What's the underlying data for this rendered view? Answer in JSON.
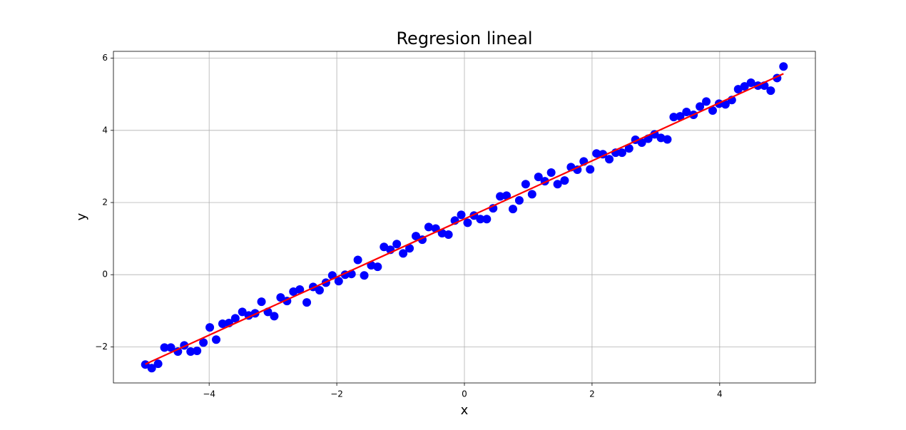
{
  "chart_data": {
    "type": "scatter",
    "title": "Regresion lineal",
    "x_label": "x",
    "y_label": "y",
    "xlim": [
      -5.5,
      5.5
    ],
    "ylim": [
      -3.0,
      6.19
    ],
    "xticks": [
      {
        "value": -4,
        "label": "−4"
      },
      {
        "value": -2,
        "label": "−2"
      },
      0,
      2,
      4
    ],
    "yticks": [
      {
        "value": -2,
        "label": "−2"
      },
      0,
      2,
      4,
      6
    ],
    "grid": true,
    "series": [
      {
        "type": "scatter",
        "color": "#0000ff",
        "x": [
          -5.0,
          -4.9,
          -4.8,
          -4.7,
          -4.6,
          -4.49,
          -4.39,
          -4.29,
          -4.19,
          -4.09,
          -3.99,
          -3.89,
          -3.79,
          -3.69,
          -3.59,
          -3.48,
          -3.38,
          -3.28,
          -3.18,
          -3.08,
          -2.98,
          -2.88,
          -2.78,
          -2.68,
          -2.58,
          -2.47,
          -2.37,
          -2.27,
          -2.17,
          -2.07,
          -1.97,
          -1.87,
          -1.77,
          -1.67,
          -1.57,
          -1.46,
          -1.36,
          -1.26,
          -1.16,
          -1.06,
          -0.96,
          -0.86,
          -0.76,
          -0.66,
          -0.56,
          -0.45,
          -0.35,
          -0.25,
          -0.15,
          -0.05,
          0.05,
          0.15,
          0.25,
          0.35,
          0.45,
          0.56,
          0.66,
          0.76,
          0.86,
          0.96,
          1.06,
          1.16,
          1.26,
          1.36,
          1.46,
          1.57,
          1.67,
          1.77,
          1.87,
          1.97,
          2.07,
          2.17,
          2.27,
          2.37,
          2.47,
          2.58,
          2.68,
          2.78,
          2.88,
          2.98,
          3.08,
          3.18,
          3.28,
          3.38,
          3.48,
          3.59,
          3.69,
          3.79,
          3.89,
          3.99,
          4.09,
          4.19,
          4.29,
          4.39,
          4.49,
          4.6,
          4.7,
          4.8,
          4.9,
          5.0
        ],
        "values": [
          -2.49,
          -2.59,
          -2.47,
          -2.02,
          -2.02,
          -2.13,
          -1.96,
          -2.13,
          -2.11,
          -1.88,
          -1.46,
          -1.8,
          -1.36,
          -1.34,
          -1.21,
          -1.03,
          -1.13,
          -1.07,
          -0.75,
          -1.03,
          -1.15,
          -0.63,
          -0.73,
          -0.47,
          -0.41,
          -0.77,
          -0.34,
          -0.43,
          -0.22,
          -0.02,
          -0.18,
          0.0,
          0.02,
          0.41,
          -0.02,
          0.26,
          0.22,
          0.77,
          0.69,
          0.85,
          0.59,
          0.73,
          1.07,
          0.97,
          1.32,
          1.28,
          1.15,
          1.11,
          1.5,
          1.66,
          1.44,
          1.64,
          1.54,
          1.54,
          1.84,
          2.17,
          2.19,
          1.82,
          2.06,
          2.51,
          2.23,
          2.71,
          2.59,
          2.83,
          2.51,
          2.61,
          2.98,
          2.91,
          3.14,
          2.92,
          3.36,
          3.34,
          3.2,
          3.38,
          3.38,
          3.5,
          3.74,
          3.66,
          3.77,
          3.89,
          3.79,
          3.75,
          4.37,
          4.39,
          4.51,
          4.43,
          4.66,
          4.8,
          4.55,
          4.74,
          4.72,
          4.84,
          5.14,
          5.22,
          5.32,
          5.24,
          5.24,
          5.1,
          5.45,
          5.77
        ]
      },
      {
        "type": "line",
        "color": "#ff0000",
        "x": [
          -5,
          5
        ],
        "values": [
          -2.48,
          5.57
        ]
      }
    ]
  }
}
